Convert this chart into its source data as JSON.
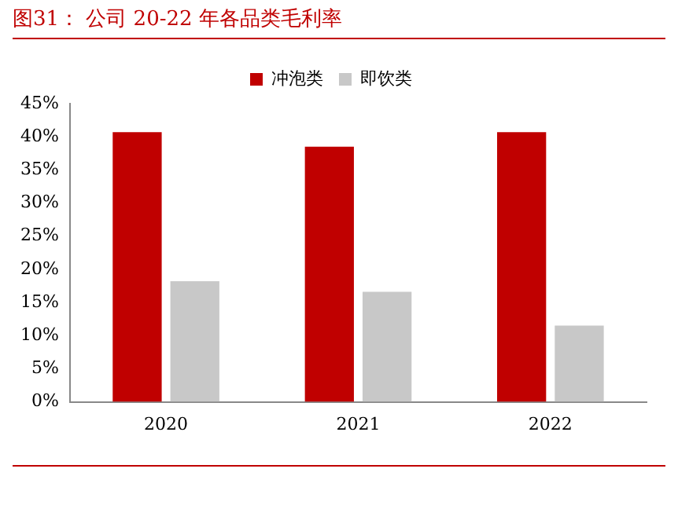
{
  "chart_data": {
    "type": "bar",
    "title": "图31：  公司 20-22 年各品类毛利率",
    "categories": [
      "2020",
      "2021",
      "2022"
    ],
    "series": [
      {
        "name": "冲泡类",
        "color": "#c00000",
        "values": [
          40.7,
          38.5,
          40.7
        ]
      },
      {
        "name": "即饮类",
        "color": "#c8c8c8",
        "values": [
          18.2,
          16.6,
          11.5
        ]
      }
    ],
    "ylim": [
      0,
      45
    ],
    "yticks": [
      {
        "value": 0,
        "label": "0%"
      },
      {
        "value": 5,
        "label": "5%"
      },
      {
        "value": 10,
        "label": "10%"
      },
      {
        "value": 15,
        "label": "15%"
      },
      {
        "value": 20,
        "label": "20%"
      },
      {
        "value": 25,
        "label": "25%"
      },
      {
        "value": 30,
        "label": "30%"
      },
      {
        "value": 35,
        "label": "35%"
      },
      {
        "value": 40,
        "label": "40%"
      },
      {
        "value": 45,
        "label": "45%"
      }
    ],
    "grid": false,
    "legend": "top"
  }
}
